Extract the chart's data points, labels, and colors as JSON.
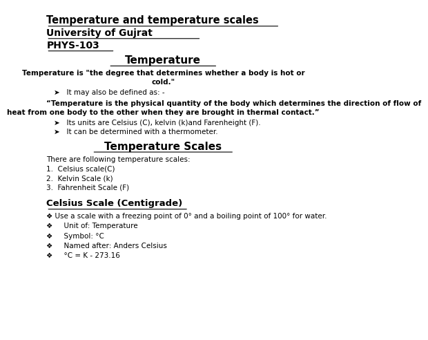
{
  "title1": "Temperature and temperature scales",
  "title2": "University of Gujrat",
  "title3": "PHYS-103",
  "section1_heading": "Temperature",
  "section1_def1": "Temperature is \"the degree that determines whether a body is hot or",
  "section1_def2": "cold.\"",
  "section1_bullet1": "➤   It may also be defined as: -",
  "section1_quote1": "“Temperature is the physical quantity of the body which determines the direction of flow of",
  "section1_quote2": "heat from one body to the other when they are brought in thermal contact.”",
  "section1_bullet2": "➤   Its units are Celsius (C), kelvin (k)and Farenheight (F).",
  "section1_bullet3": "➤   It can be determined with a thermometer.",
  "section2_heading": "Temperature Scales",
  "section2_intro": "There are following temperature scales:",
  "section2_item1": "1.  Celsius scale(C)",
  "section2_item2": "2.  Kelvin Scale (k)",
  "section2_item3": "3.  Fahrenheit Scale (F)",
  "section3_heading": "Celsius Scale (Centigrade)",
  "section3_b1": "❖ Use a scale with a freezing point of 0° and a boiling point of 100° for water.",
  "section3_b2": "❖     Unit of: Temperature",
  "section3_b3": "❖     Symbol: °C",
  "section3_b4": "❖     Named after: Anders Celsius",
  "section3_b5": "❖     °C = K - 273.16",
  "bg_color": "#ffffff",
  "text_color": "#000000"
}
